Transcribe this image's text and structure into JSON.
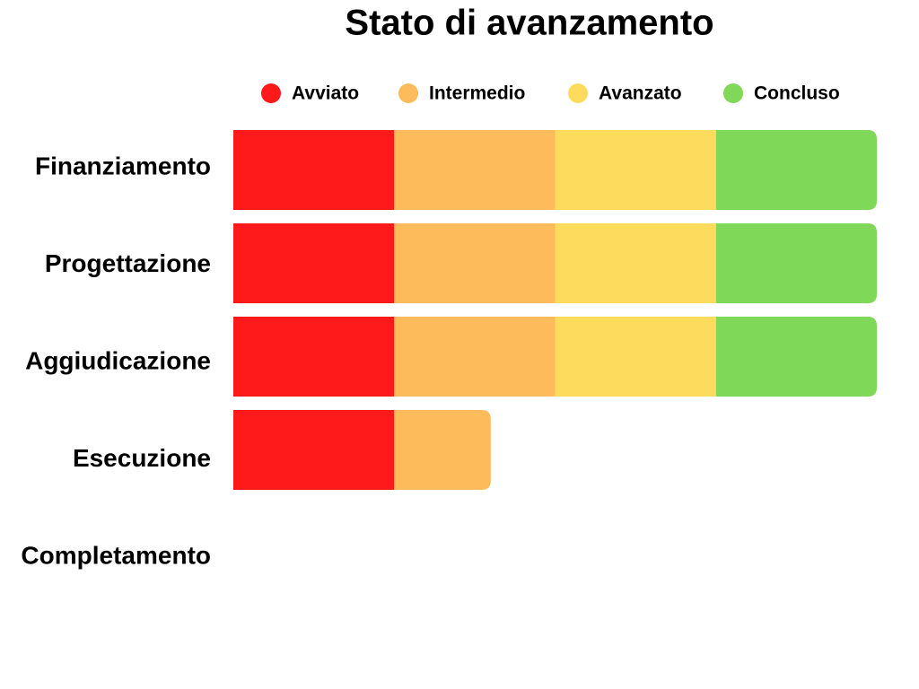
{
  "chart_data": {
    "type": "bar",
    "orientation": "horizontal",
    "stacked": true,
    "title": "Stato di avanzamento",
    "categories": [
      "Finanziamento",
      "Progettazione",
      "Aggiudicazione",
      "Esecuzione",
      "Completamento"
    ],
    "series": [
      {
        "name": "Avviato",
        "color": "#fe1a1a",
        "values": [
          25,
          25,
          25,
          25,
          0
        ]
      },
      {
        "name": "Intermedio",
        "color": "#fdbb5b",
        "values": [
          25,
          25,
          25,
          15,
          0
        ]
      },
      {
        "name": "Avanzato",
        "color": "#fddc5d",
        "values": [
          25,
          25,
          25,
          0,
          0
        ]
      },
      {
        "name": "Concluso",
        "color": "#80d858",
        "values": [
          25,
          25,
          25,
          0,
          0
        ]
      }
    ],
    "xlim": [
      0,
      100
    ],
    "legend": "top"
  }
}
